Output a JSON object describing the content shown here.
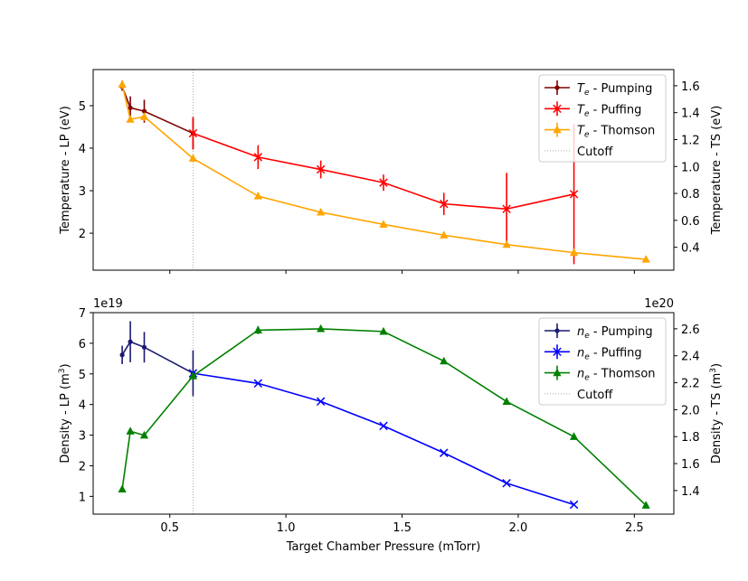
{
  "chart_data": [
    {
      "type": "line",
      "xlabel": "",
      "ylabel_left": "Temperature - LP (eV)",
      "ylabel_right": "Temperature - TS (eV)",
      "xlim": [
        0.17,
        2.67
      ],
      "ylim_left": [
        1.13,
        5.85
      ],
      "ylim_right": [
        0.23,
        1.72
      ],
      "xticks": [
        0.5,
        1.0,
        1.5,
        2.0,
        2.5
      ],
      "yticks_left": [
        2,
        3,
        4,
        5
      ],
      "yticks_right": [
        0.4,
        0.6,
        0.8,
        1.0,
        1.2,
        1.4,
        1.6
      ],
      "ytick_labels_left": [
        "2",
        "3",
        "4",
        "5"
      ],
      "ytick_labels_right": [
        "0.4",
        "0.6",
        "0.8",
        "1.0",
        "1.2",
        "1.4",
        "1.6"
      ],
      "cutoff_x": 0.6,
      "legend_position": "upper right",
      "series": [
        {
          "name": "Te - Pumping",
          "legend_name": "T",
          "legend_sub": "e",
          "legend_rest": " - Pumping",
          "color": "#800000",
          "marker": "dot",
          "axis": "left",
          "x": [
            0.295,
            0.33,
            0.39,
            0.6
          ],
          "y": [
            5.45,
            4.95,
            4.87,
            4.35
          ],
          "err": [
            0.1,
            0.27,
            0.27,
            0.38
          ]
        },
        {
          "name": "Te - Puffing",
          "legend_name": "T",
          "legend_sub": "e",
          "legend_rest": " - Puffing",
          "color": "#ff0000",
          "marker": "x",
          "axis": "left",
          "x": [
            0.6,
            0.88,
            1.15,
            1.42,
            1.68,
            1.95,
            2.24
          ],
          "y": [
            4.35,
            3.79,
            3.5,
            3.19,
            2.69,
            2.57,
            2.92
          ],
          "err": [
            0.38,
            0.28,
            0.21,
            0.19,
            0.26,
            0.85,
            1.65
          ]
        },
        {
          "name": "Te - Thomson",
          "legend_name": "T",
          "legend_sub": "e",
          "legend_rest": " - Thomson",
          "color": "#ffa500",
          "marker": "triangle",
          "axis": "right",
          "x": [
            0.295,
            0.33,
            0.39,
            0.6,
            0.88,
            1.15,
            1.42,
            1.68,
            1.95,
            2.24,
            2.55
          ],
          "y": [
            1.61,
            1.35,
            1.37,
            1.06,
            0.78,
            0.66,
            0.57,
            0.49,
            0.42,
            0.36,
            0.31
          ],
          "err": [
            0.03,
            0.02,
            0.03,
            0.01,
            0.01,
            0.01,
            0.01,
            0.01,
            0.01,
            0.01,
            0.005
          ]
        }
      ],
      "legend": [
        {
          "name": "T",
          "sub": "e",
          "rest": " - Pumping",
          "color": "#800000",
          "marker": "dot"
        },
        {
          "name": "T",
          "sub": "e",
          "rest": " - Puffing",
          "color": "#ff0000",
          "marker": "x"
        },
        {
          "name": "T",
          "sub": "e",
          "rest": " - Thomson",
          "color": "#ffa500",
          "marker": "triangle"
        },
        {
          "name": "Cutoff",
          "sub": "",
          "rest": "",
          "color": "#aaaaaa",
          "marker": "dotted"
        }
      ]
    },
    {
      "type": "line",
      "xlabel": "Target Chamber Pressure (mTorr)",
      "ylabel_left": "Density - LP (m",
      "ylabel_left_sup": "3",
      "ylabel_left_tail": ")",
      "ylabel_right": "Density - TS (m",
      "ylabel_right_sup": "3",
      "ylabel_right_tail": ")",
      "offset_left": "1e19",
      "offset_right": "1e20",
      "xlim": [
        0.17,
        2.67
      ],
      "ylim_left": [
        0.42,
        7.0
      ],
      "ylim_right": [
        1.225,
        2.72
      ],
      "xticks": [
        0.5,
        1.0,
        1.5,
        2.0,
        2.5
      ],
      "xtick_labels": [
        "0.5",
        "1.0",
        "1.5",
        "2.0",
        "2.5"
      ],
      "yticks_left": [
        1,
        2,
        3,
        4,
        5,
        6,
        7
      ],
      "yticks_right": [
        1.2,
        1.4,
        1.6,
        1.8,
        2.0,
        2.2,
        2.4,
        2.6
      ],
      "ytick_labels_left": [
        "1",
        "2",
        "3",
        "4",
        "5",
        "6",
        "7"
      ],
      "ytick_labels_right": [
        "1.2",
        "1.4",
        "1.6",
        "1.8",
        "2.0",
        "2.2",
        "2.4",
        "2.6"
      ],
      "cutoff_x": 0.6,
      "legend_position": "upper right",
      "series": [
        {
          "name": "ne - Pumping",
          "color": "#191970",
          "marker": "dot",
          "axis": "left",
          "x": [
            0.295,
            0.33,
            0.39,
            0.6
          ],
          "y": [
            5.62,
            6.05,
            5.87,
            5.02
          ],
          "err": [
            0.3,
            0.67,
            0.5,
            0.75
          ]
        },
        {
          "name": "ne - Puffing",
          "color": "#0000ff",
          "marker": "x",
          "axis": "left",
          "x": [
            0.6,
            0.88,
            1.15,
            1.42,
            1.68,
            1.95,
            2.24
          ],
          "y": [
            5.02,
            4.69,
            4.1,
            3.3,
            2.42,
            1.43,
            0.73
          ],
          "err": [
            0,
            0,
            0,
            0,
            0,
            0,
            0
          ]
        },
        {
          "name": "ne - Thomson",
          "color": "#008000",
          "marker": "triangle",
          "axis": "right",
          "x": [
            0.295,
            0.33,
            0.39,
            0.6,
            0.88,
            1.15,
            1.42,
            1.68,
            1.95,
            2.24,
            2.55
          ],
          "y": [
            1.41,
            1.84,
            1.81,
            2.25,
            2.59,
            2.6,
            2.58,
            2.36,
            2.06,
            1.8,
            1.29
          ],
          "err": [
            0.005,
            0.01,
            0.01,
            0.01,
            0.03,
            0.01,
            0.015,
            0.01,
            0.02,
            0.01,
            0.005
          ]
        }
      ],
      "legend": [
        {
          "name": "n",
          "sub": "e",
          "rest": " - Pumping",
          "color": "#191970",
          "marker": "dot"
        },
        {
          "name": "n",
          "sub": "e",
          "rest": " - Puffing",
          "color": "#0000ff",
          "marker": "x"
        },
        {
          "name": "n",
          "sub": "e",
          "rest": " - Thomson",
          "color": "#008000",
          "marker": "triangle"
        },
        {
          "name": "Cutoff",
          "sub": "",
          "rest": "",
          "color": "#aaaaaa",
          "marker": "dotted"
        }
      ]
    }
  ]
}
